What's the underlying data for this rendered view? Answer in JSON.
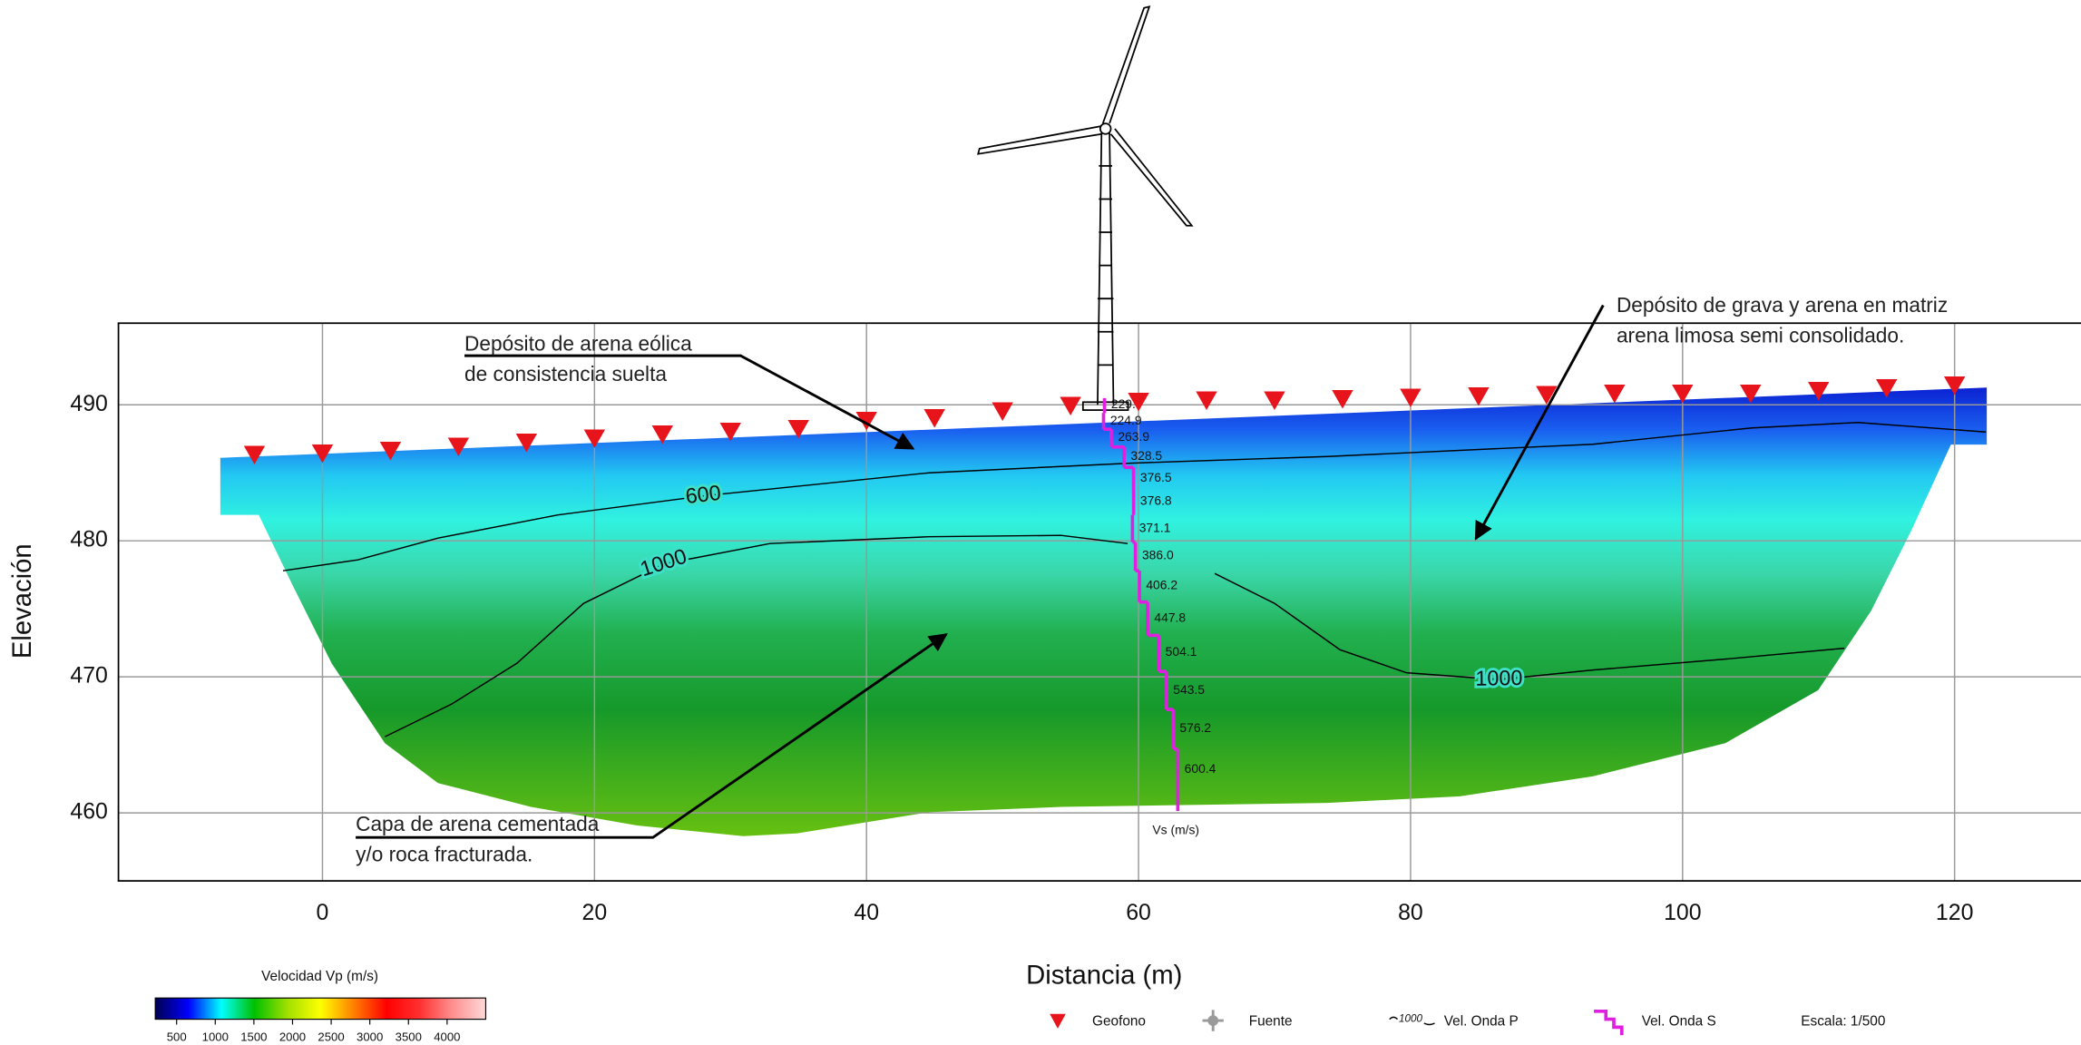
{
  "chart_data": {
    "type": "seismic-section",
    "xlabel": "Distancia (m)",
    "ylabel": "Elevación",
    "xlim": [
      -15,
      129
    ],
    "ylim": [
      455,
      496
    ],
    "xticks": [
      0,
      20,
      40,
      60,
      80,
      100,
      120
    ],
    "yticks": [
      460,
      470,
      480,
      490
    ],
    "grid": true,
    "geophones": {
      "name": "Geofono",
      "color": "#e8141c",
      "x": [
        -5,
        0,
        5,
        10,
        15,
        20,
        25,
        30,
        35,
        40,
        45,
        50,
        55,
        60,
        65,
        70,
        75,
        80,
        85,
        90,
        95,
        100,
        105,
        110,
        115,
        120
      ],
      "y": [
        486.3,
        486.4,
        486.6,
        486.9,
        487.2,
        487.5,
        487.8,
        488.0,
        488.2,
        488.8,
        489.0,
        489.5,
        489.9,
        490.2,
        490.3,
        490.3,
        490.4,
        490.5,
        490.6,
        490.7,
        490.8,
        490.8,
        490.8,
        491.0,
        491.2,
        491.4
      ]
    },
    "source": {
      "name": "Fuente",
      "color": "#9a9a9a"
    },
    "p_wave_legend": "Vel. Onda P",
    "contours": [
      {
        "level": 600,
        "x": [
          -2.9,
          2.6,
          8.5,
          17.3,
          28.0,
          44.6,
          59.2,
          73.9,
          93.4,
          105.1,
          112.9,
          122.3
        ],
        "y": [
          477.8,
          478.6,
          480.2,
          481.9,
          483.3,
          485.0,
          485.7,
          486.2,
          487.1,
          488.3,
          488.7,
          488.0
        ]
      },
      {
        "level": 1000,
        "x": [
          4.6,
          9.5,
          14.3,
          19.2,
          25.1,
          32.9,
          44.6,
          54.3,
          59.2,
          null,
          65.6,
          70.0,
          74.8,
          79.7,
          86.5,
          93.4,
          103.1,
          111.9
        ],
        "y": [
          465.6,
          468.0,
          471.0,
          475.4,
          478.3,
          479.8,
          480.3,
          480.4,
          479.8,
          null,
          477.6,
          475.4,
          472.0,
          470.3,
          469.8,
          470.5,
          471.3,
          472.1
        ]
      }
    ],
    "vs_profile": {
      "name": "Vel. Onda S",
      "label": "Vs (m/s)",
      "color": "#e020e0",
      "values": [
        229.7,
        224.9,
        263.9,
        328.5,
        376.5,
        376.8,
        371.1,
        386.0,
        406.2,
        447.8,
        504.1,
        543.5,
        576.2,
        600.4
      ],
      "value_labels": [
        "229.7",
        "224.9",
        "263.9",
        "328.5",
        "376.5",
        "376.8",
        "371.1",
        "386.0",
        "406.2",
        "447.8",
        "504.1",
        "543.5",
        "576.2",
        "600.4"
      ],
      "y": [
        490.0,
        488.8,
        487.6,
        486.2,
        484.6,
        482.9,
        480.9,
        478.9,
        476.7,
        474.3,
        471.8,
        469.0,
        466.2,
        463.2
      ]
    },
    "colorbar": {
      "title": "Velocidad Vp (m/s)",
      "lim": [
        224,
        4500
      ],
      "ticks": [
        500,
        1000,
        1500,
        2000,
        2500,
        3000,
        3500,
        4000
      ],
      "colors": [
        "#000050",
        "#0000ff",
        "#00ffff",
        "#00c000",
        "#a0e000",
        "#ffff00",
        "#ff8000",
        "#ff0000",
        "#ff3030",
        "#ff9090",
        "#ffd8d8"
      ]
    },
    "annotations": [
      {
        "lines": [
          "Depósito de arena eólica",
          "de consistencia suelta"
        ]
      },
      {
        "lines": [
          "Depósito de grava y arena en matriz",
          "arena limosa semi consolidado."
        ]
      },
      {
        "lines": [
          "Capa de arena cementada",
          "y/o roca fracturada."
        ]
      }
    ],
    "scale": "Escala: 1/500"
  }
}
